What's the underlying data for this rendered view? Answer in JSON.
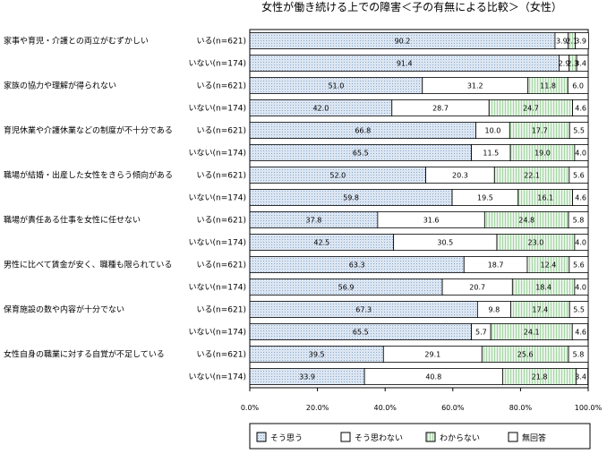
{
  "chart_data": {
    "type": "bar",
    "orientation": "horizontal",
    "stacked": true,
    "title": "女性が働き続ける上での障害＜子の有無による比較＞（女性）",
    "xlabel": "",
    "ylabel": "",
    "xlim": [
      0,
      100
    ],
    "x_ticks": [
      "0.0%",
      "20.0%",
      "40.0%",
      "60.0%",
      "80.0%",
      "100.0%"
    ],
    "legend_position": "bottom",
    "series": [
      {
        "name": "そう思う",
        "color": "#d6e2ef",
        "pattern": "dots-blue"
      },
      {
        "name": "そう思わない",
        "color": "#ffffff",
        "pattern": "none"
      },
      {
        "name": "わからない",
        "color": "#ddf0dd",
        "pattern": "lines-green"
      },
      {
        "name": "無回答",
        "color": "#ffffff",
        "pattern": "none"
      }
    ],
    "categories": [
      {
        "label": "家事や育児・介護との両立がむずかしい",
        "rows": [
          {
            "group": "いる(n=621)",
            "values": [
              90.2,
              3.9,
              2.1,
              3.9
            ],
            "labels": [
              "90.2",
              "3.9",
              "2.1",
              "3.9"
            ]
          },
          {
            "group": "いない(n=174)",
            "values": [
              91.4,
              2.9,
              2.3,
              3.4
            ],
            "labels": [
              "91.4",
              "2.9",
              "2.3",
              "3.4"
            ]
          }
        ]
      },
      {
        "label": "家族の協力や理解が得られない",
        "rows": [
          {
            "group": "いる(n=621)",
            "values": [
              51.0,
              31.2,
              11.8,
              6.0
            ],
            "labels": [
              "51.0",
              "31.2",
              "11.8",
              "6.0"
            ]
          },
          {
            "group": "いない(n=174)",
            "values": [
              42.0,
              28.7,
              24.7,
              4.6
            ],
            "labels": [
              "42.0",
              "28.7",
              "24.7",
              "4.6"
            ]
          }
        ]
      },
      {
        "label": "育児休業や介護休業などの制度が不十分である",
        "rows": [
          {
            "group": "いる(n=621)",
            "values": [
              66.8,
              10.0,
              17.7,
              5.5
            ],
            "labels": [
              "66.8",
              "10.0",
              "17.7",
              "5.5"
            ]
          },
          {
            "group": "いない(n=174)",
            "values": [
              65.5,
              11.5,
              19.0,
              4.0
            ],
            "labels": [
              "65.5",
              "11.5",
              "19.0",
              "4.0"
            ]
          }
        ]
      },
      {
        "label": "職場が結婚・出産した女性をきらう傾向がある",
        "rows": [
          {
            "group": "いる(n=621)",
            "values": [
              52.0,
              20.3,
              22.1,
              5.6
            ],
            "labels": [
              "52.0",
              "20.3",
              "22.1",
              "5.6"
            ]
          },
          {
            "group": "いない(n=174)",
            "values": [
              59.8,
              19.5,
              16.1,
              4.6
            ],
            "labels": [
              "59.8",
              "19.5",
              "16.1",
              "4.6"
            ]
          }
        ]
      },
      {
        "label": "職場が責任ある仕事を女性に任せない",
        "rows": [
          {
            "group": "いる(n=621)",
            "values": [
              37.8,
              31.6,
              24.8,
              5.8
            ],
            "labels": [
              "37.8",
              "31.6",
              "24.8",
              "5.8"
            ]
          },
          {
            "group": "いない(n=174)",
            "values": [
              42.5,
              30.5,
              23.0,
              4.0
            ],
            "labels": [
              "42.5",
              "30.5",
              "23.0",
              "4.0"
            ]
          }
        ]
      },
      {
        "label": "男性に比べて賃金が安く、職種も限られている",
        "rows": [
          {
            "group": "いる(n=621)",
            "values": [
              63.3,
              18.7,
              12.4,
              5.6
            ],
            "labels": [
              "63.3",
              "18.7",
              "12.4",
              "5.6"
            ]
          },
          {
            "group": "いない(n=174)",
            "values": [
              56.9,
              20.7,
              18.4,
              4.0
            ],
            "labels": [
              "56.9",
              "20.7",
              "18.4",
              "4.0"
            ]
          }
        ]
      },
      {
        "label": "保育施設の数や内容が十分でない",
        "rows": [
          {
            "group": "いる(n=621)",
            "values": [
              67.3,
              9.8,
              17.4,
              5.5
            ],
            "labels": [
              "67.3",
              "9.8",
              "17.4",
              "5.5"
            ]
          },
          {
            "group": "いない(n=174)",
            "values": [
              65.5,
              5.7,
              24.1,
              4.6
            ],
            "labels": [
              "65.5",
              "5.7",
              "24.1",
              "4.6"
            ]
          }
        ]
      },
      {
        "label": "女性自身の職業に対する自覚が不足している",
        "rows": [
          {
            "group": "いる(n=621)",
            "values": [
              39.5,
              29.1,
              25.6,
              5.8
            ],
            "labels": [
              "39.5",
              "29.1",
              "25.6",
              "5.8"
            ]
          },
          {
            "group": "いない(n=174)",
            "values": [
              33.9,
              40.8,
              21.8,
              3.4
            ],
            "labels": [
              "33.9",
              "40.8",
              "21.8",
              "3.4"
            ]
          }
        ]
      }
    ]
  }
}
